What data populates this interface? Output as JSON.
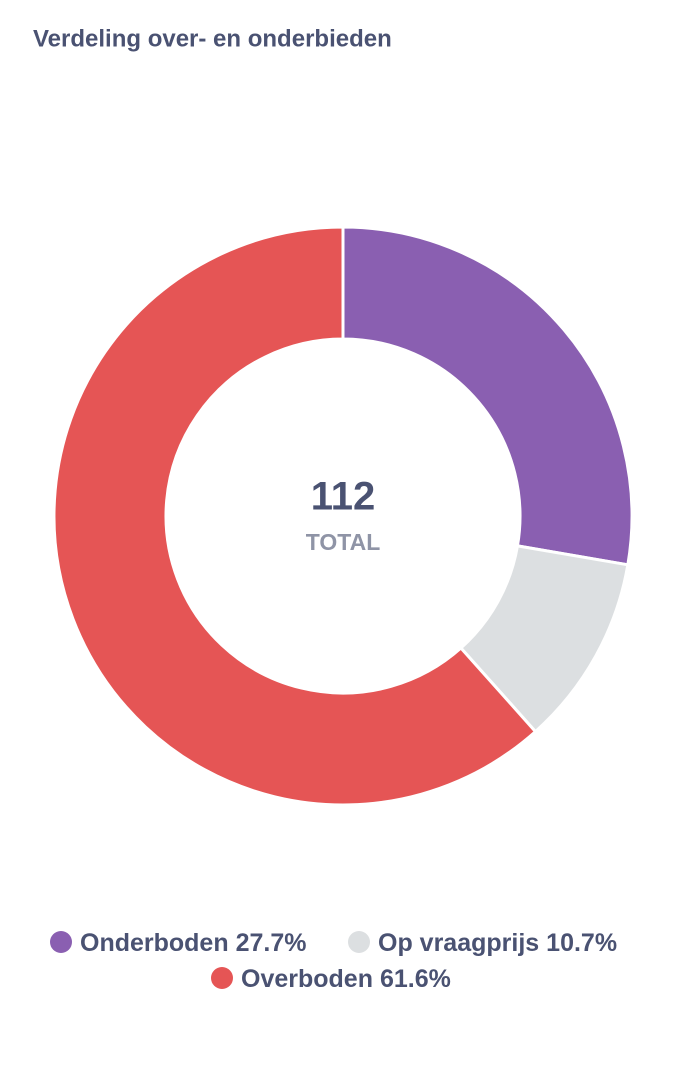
{
  "chart_data": {
    "type": "donut",
    "title": "Verdeling over- en onderbieden",
    "categories": [
      "Onderboden",
      "Op vraagprijs",
      "Overboden"
    ],
    "values": [
      27.7,
      10.7,
      61.6
    ],
    "value_labels": [
      "27.7%",
      "10.7%",
      "61.6%"
    ],
    "colors": [
      "#8a5fb1",
      "#dcdfe1",
      "#e55555"
    ],
    "total": 112,
    "total_label": "TOTAL"
  }
}
